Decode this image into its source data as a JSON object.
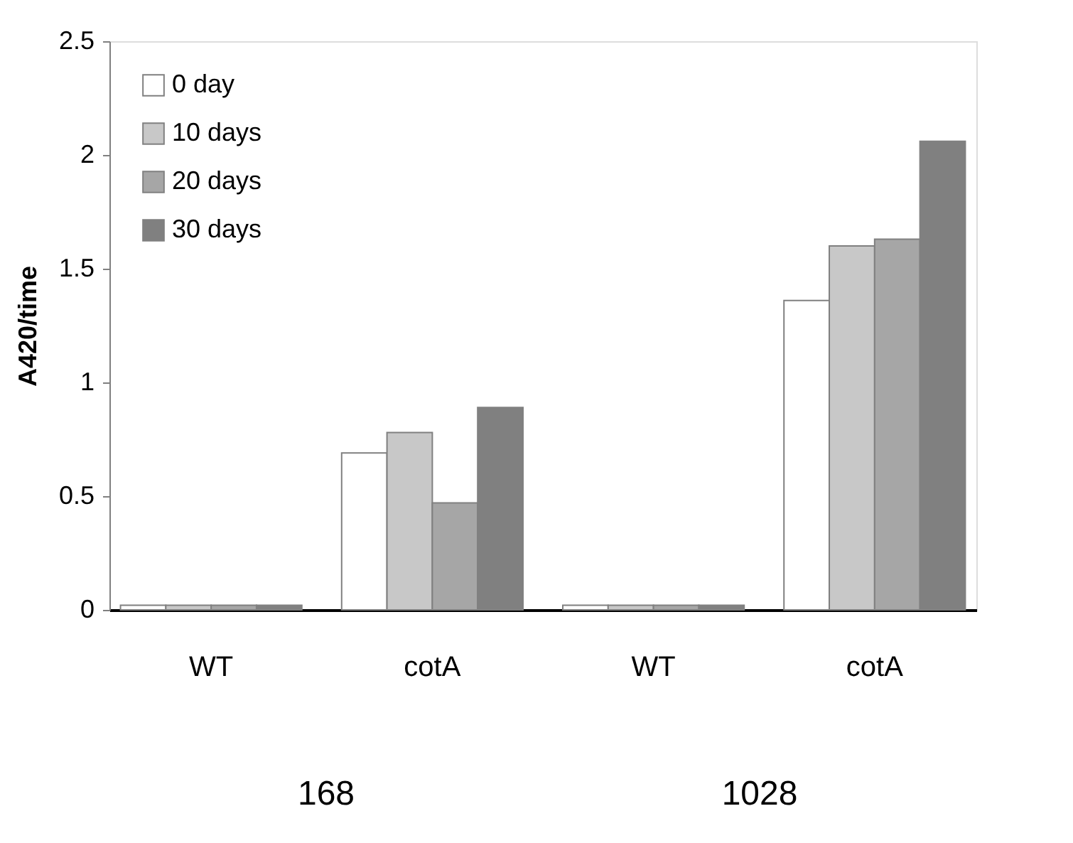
{
  "chart_data": {
    "type": "bar",
    "ylabel": "A420/time",
    "categories": [
      "WT",
      "cotA",
      "WT",
      "cotA"
    ],
    "series": [
      {
        "name": "0 day",
        "color": "#ffffff",
        "values": [
          0.02,
          0.69,
          0.02,
          1.36
        ]
      },
      {
        "name": "10 days",
        "color": "#c8c8c8",
        "values": [
          0.02,
          0.78,
          0.02,
          1.6
        ]
      },
      {
        "name": "20 days",
        "color": "#a6a6a6",
        "values": [
          0.02,
          0.47,
          0.02,
          1.63
        ]
      },
      {
        "name": "30 days",
        "color": "#808080",
        "values": [
          0.02,
          0.89,
          0.02,
          2.06
        ]
      }
    ],
    "ylim": [
      0,
      2.5
    ],
    "yticks": [
      0,
      0.5,
      1,
      1.5,
      2,
      2.5
    ],
    "annotations": [
      "168",
      "1028"
    ],
    "grid": false,
    "legend": "top left"
  }
}
